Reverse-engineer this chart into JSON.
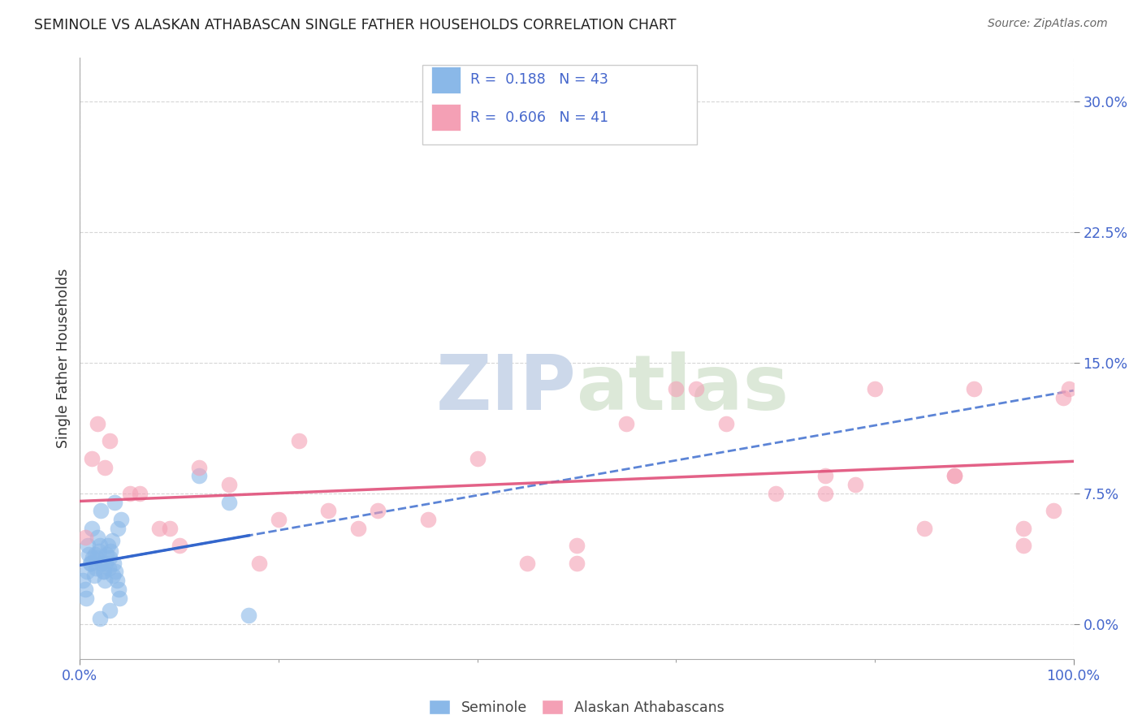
{
  "title": "SEMINOLE VS ALASKAN ATHABASCAN SINGLE FATHER HOUSEHOLDS CORRELATION CHART",
  "source": "Source: ZipAtlas.com",
  "ylabel": "Single Father Households",
  "ytick_values": [
    0.0,
    7.5,
    15.0,
    22.5,
    30.0
  ],
  "xlim": [
    0.0,
    100.0
  ],
  "ylim": [
    -2.0,
    32.5
  ],
  "legend_labels": [
    "Seminole",
    "Alaskan Athabascans"
  ],
  "seminole_color": "#8ab8e8",
  "athabascan_color": "#f4a0b5",
  "seminole_line_color": "#3366cc",
  "athabascan_line_color": "#e0507a",
  "grid_color": "#cccccc",
  "watermark_color": "#ccd8ea",
  "seminole_x": [
    0.3,
    0.5,
    0.6,
    0.7,
    0.8,
    0.9,
    1.0,
    1.1,
    1.2,
    1.3,
    1.4,
    1.5,
    1.6,
    1.7,
    1.8,
    1.9,
    2.0,
    2.1,
    2.2,
    2.3,
    2.4,
    2.5,
    2.6,
    2.7,
    2.8,
    2.9,
    3.0,
    3.1,
    3.2,
    3.3,
    3.4,
    3.5,
    3.6,
    3.7,
    3.8,
    3.9,
    4.0,
    4.1,
    12.0,
    15.0,
    17.0,
    2.0,
    3.0
  ],
  "seminole_y": [
    2.5,
    2.0,
    1.5,
    3.0,
    4.5,
    4.0,
    3.5,
    3.5,
    5.5,
    3.8,
    2.8,
    4.0,
    3.2,
    3.8,
    5.0,
    4.2,
    4.5,
    6.5,
    3.5,
    3.0,
    3.0,
    2.5,
    3.5,
    4.0,
    4.5,
    3.2,
    3.8,
    4.2,
    4.8,
    2.8,
    3.5,
    7.0,
    3.0,
    2.5,
    5.5,
    2.0,
    1.5,
    6.0,
    8.5,
    7.0,
    0.5,
    0.3,
    0.8
  ],
  "athabascan_x": [
    0.5,
    1.2,
    1.8,
    2.5,
    5.0,
    8.0,
    10.0,
    12.0,
    15.0,
    20.0,
    22.0,
    25.0,
    28.0,
    30.0,
    35.0,
    40.0,
    45.0,
    50.0,
    55.0,
    60.0,
    65.0,
    70.0,
    75.0,
    78.0,
    80.0,
    85.0,
    88.0,
    90.0,
    95.0,
    98.0,
    99.5,
    3.0,
    6.0,
    9.0,
    18.0,
    50.0,
    62.0,
    75.0,
    88.0,
    95.0,
    99.0
  ],
  "athabascan_y": [
    5.0,
    9.5,
    11.5,
    9.0,
    7.5,
    5.5,
    4.5,
    9.0,
    8.0,
    6.0,
    10.5,
    6.5,
    5.5,
    6.5,
    6.0,
    9.5,
    3.5,
    4.5,
    11.5,
    13.5,
    11.5,
    7.5,
    8.5,
    8.0,
    13.5,
    5.5,
    8.5,
    13.5,
    4.5,
    6.5,
    13.5,
    10.5,
    7.5,
    5.5,
    3.5,
    3.5,
    13.5,
    7.5,
    8.5,
    5.5,
    13.0
  ]
}
